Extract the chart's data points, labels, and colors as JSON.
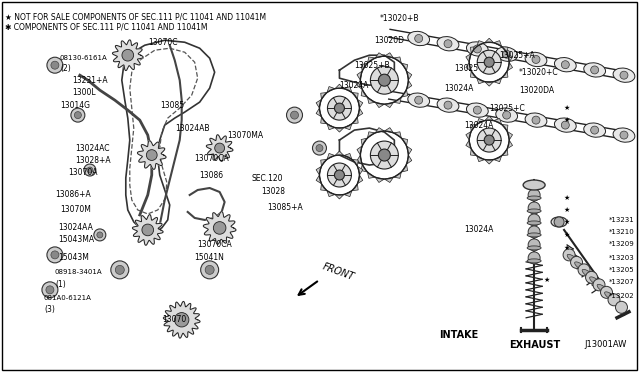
{
  "figsize": [
    6.4,
    3.72
  ],
  "dpi": 100,
  "bg_color": "#ffffff",
  "border_color": "#000000",
  "text_color": "#000000",
  "note1": "★ NOT FOR SALE COMPONENTS OF SEC.111 P/C 11041 AND 11041M",
  "note2": "✱ COMPONENTS OF SEC.111 P/C 11041 AND 11041M",
  "bottom_right": "J13001AW",
  "intake_label": "INTAKE",
  "exhaust_label": "EXHAUST",
  "front_label": "FRONT"
}
